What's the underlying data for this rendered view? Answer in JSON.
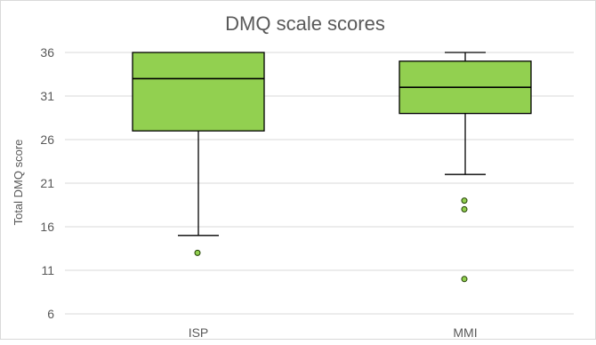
{
  "chart_data": {
    "type": "boxplot",
    "title": "DMQ scale scores",
    "xlabel": "",
    "ylabel": "Total DMQ score",
    "ylim": [
      6,
      36
    ],
    "yticks": [
      6,
      11,
      16,
      21,
      26,
      31,
      36
    ],
    "grid": true,
    "legend": "none",
    "colors": {
      "box_fill": "#92d050",
      "box_stroke": "#000000",
      "gridline": "#d9d9d9",
      "text": "#595959"
    },
    "categories": [
      "ISP",
      "MMI"
    ],
    "boxes": [
      {
        "category": "ISP",
        "whisker_low": 15,
        "q1": 27,
        "median": 33,
        "q3": 36,
        "whisker_high": 36,
        "outliers": [
          13
        ]
      },
      {
        "category": "MMI",
        "whisker_low": 22,
        "q1": 29,
        "median": 32,
        "q3": 35,
        "whisker_high": 36,
        "outliers": [
          19,
          18,
          10
        ]
      }
    ]
  }
}
